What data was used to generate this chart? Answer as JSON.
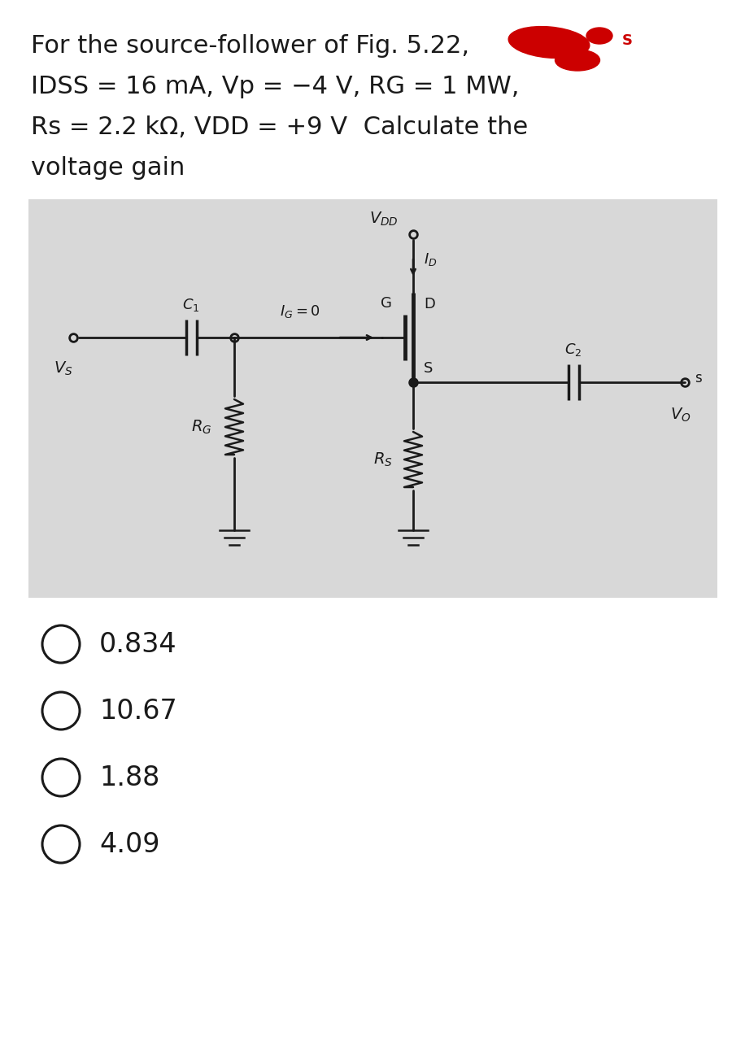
{
  "title_line1": "For the source-follower of Fig. 5.22,",
  "title_line2": "IDSS = 16 mA, Vp = −4 V, RG = 1 MW,",
  "title_line3": "Rs = 2.2 kΩ, VDD = +9 V  Calculate the",
  "title_line4": "voltage gain",
  "options": [
    "0.834",
    "10.67",
    "1.88",
    "4.09"
  ],
  "bg_color": "#ffffff",
  "circuit_bg": "#d8d8d8",
  "text_color": "#1a1a1a",
  "circuit_line_color": "#1a1a1a",
  "title_fontsize": 22,
  "option_fontsize": 24,
  "red_color": "#cc0000"
}
